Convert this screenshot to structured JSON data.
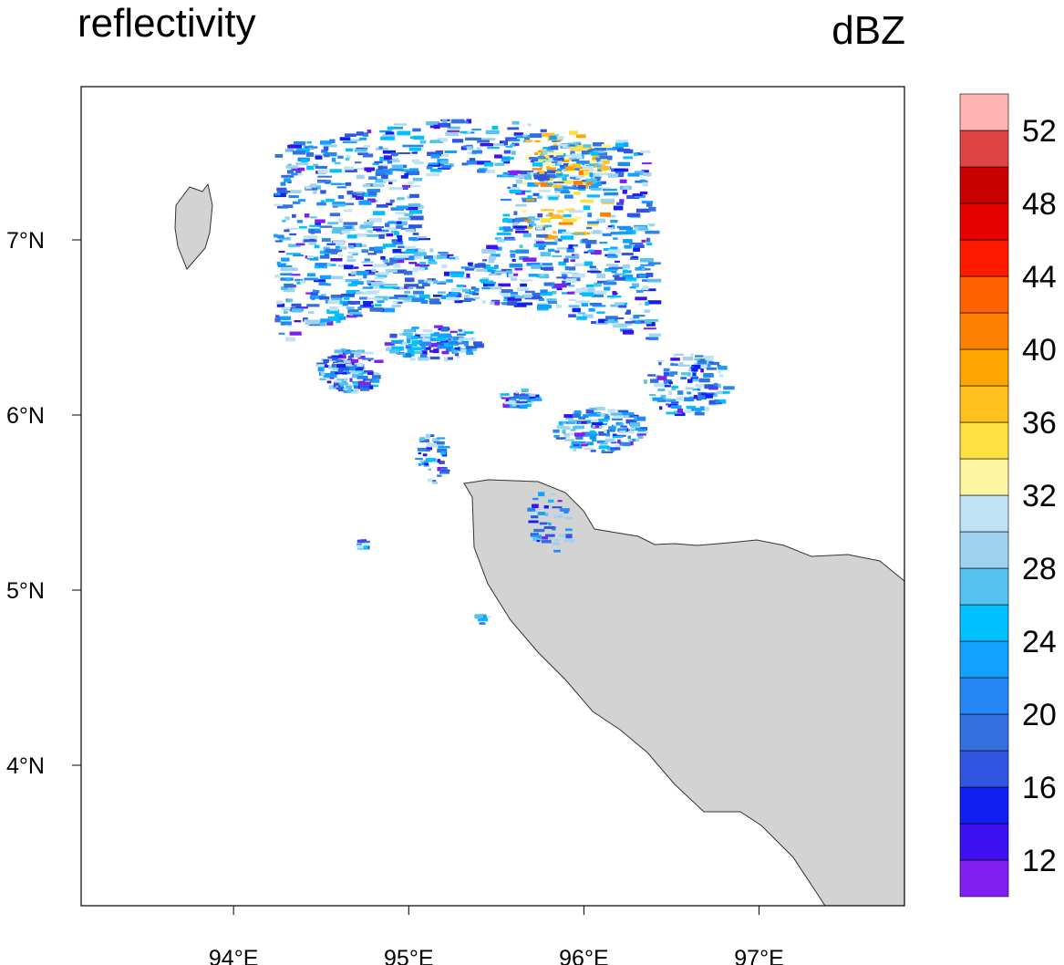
{
  "map": {
    "title": "reflectivity",
    "units": "dBZ",
    "xlim": [
      93.13,
      97.83
    ],
    "ylim": [
      3.198,
      7.875
    ],
    "xticks": [
      {
        "value": 94,
        "label": "94°E"
      },
      {
        "value": 95,
        "label": "95°E"
      },
      {
        "value": 96,
        "label": "96°E"
      },
      {
        "value": 97,
        "label": "97°E"
      }
    ],
    "yticks": [
      {
        "value": 4,
        "label": "4°N"
      },
      {
        "value": 5,
        "label": "5°N"
      },
      {
        "value": 6,
        "label": "6°N"
      },
      {
        "value": 7,
        "label": "7°N"
      }
    ],
    "land_color": "#d3d3d3",
    "colorbar": {
      "levels": [
        12,
        14,
        16,
        18,
        20,
        22,
        24,
        26,
        28,
        30,
        32,
        34,
        36,
        38,
        40,
        42,
        44,
        46,
        48,
        50,
        52
      ],
      "ticks": [
        12,
        16,
        20,
        24,
        28,
        32,
        36,
        40,
        44,
        48,
        52
      ],
      "colors": [
        "#8020f0",
        "#3c10f0",
        "#1020f0",
        "#3055e0",
        "#3370e0",
        "#2487f5",
        "#14a0ff",
        "#00c0ff",
        "#55c2f0",
        "#9ed2ee",
        "#bfe3f5",
        "#fff5a0",
        "#ffe040",
        "#ffc01e",
        "#ffa500",
        "#ff8000",
        "#ff6000",
        "#ff1a00",
        "#e60000",
        "#c80000",
        "#dd4444",
        "#ffb4b4"
      ]
    }
  }
}
